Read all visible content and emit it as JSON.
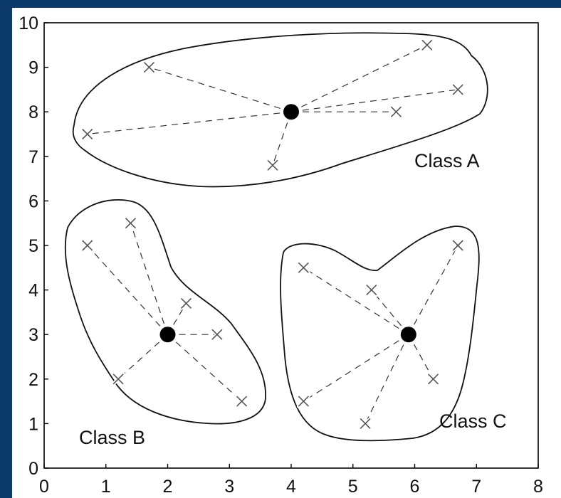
{
  "frame": {
    "color": "#0b3a6b"
  },
  "chart_data": {
    "type": "scatter",
    "title": "",
    "xlabel": "",
    "ylabel": "",
    "xlim": [
      0,
      8
    ],
    "ylim": [
      0,
      10
    ],
    "x_ticks": [
      "0",
      "1",
      "2",
      "3",
      "4",
      "5",
      "6",
      "7",
      "8"
    ],
    "y_ticks": [
      "0",
      "1",
      "2",
      "3",
      "4",
      "5",
      "6",
      "7",
      "8",
      "9",
      "10"
    ],
    "grid": false,
    "marker": "x",
    "centroid_marker": "filled-circle",
    "series": [
      {
        "name": "Class A",
        "centroid": [
          4.0,
          8.0
        ],
        "points": [
          [
            0.7,
            7.5
          ],
          [
            1.7,
            9.0
          ],
          [
            3.7,
            6.8
          ],
          [
            5.7,
            8.0
          ],
          [
            6.2,
            9.5
          ],
          [
            6.7,
            8.5
          ]
        ]
      },
      {
        "name": "Class B",
        "centroid": [
          2.0,
          3.0
        ],
        "points": [
          [
            0.7,
            5.0
          ],
          [
            1.4,
            5.5
          ],
          [
            2.3,
            3.7
          ],
          [
            2.8,
            3.0
          ],
          [
            1.2,
            2.0
          ],
          [
            3.2,
            1.5
          ]
        ]
      },
      {
        "name": "Class C",
        "centroid": [
          5.9,
          3.0
        ],
        "points": [
          [
            4.2,
            4.5
          ],
          [
            5.3,
            4.0
          ],
          [
            6.7,
            5.0
          ],
          [
            6.3,
            2.0
          ],
          [
            4.2,
            1.5
          ],
          [
            5.2,
            1.0
          ]
        ]
      }
    ]
  }
}
